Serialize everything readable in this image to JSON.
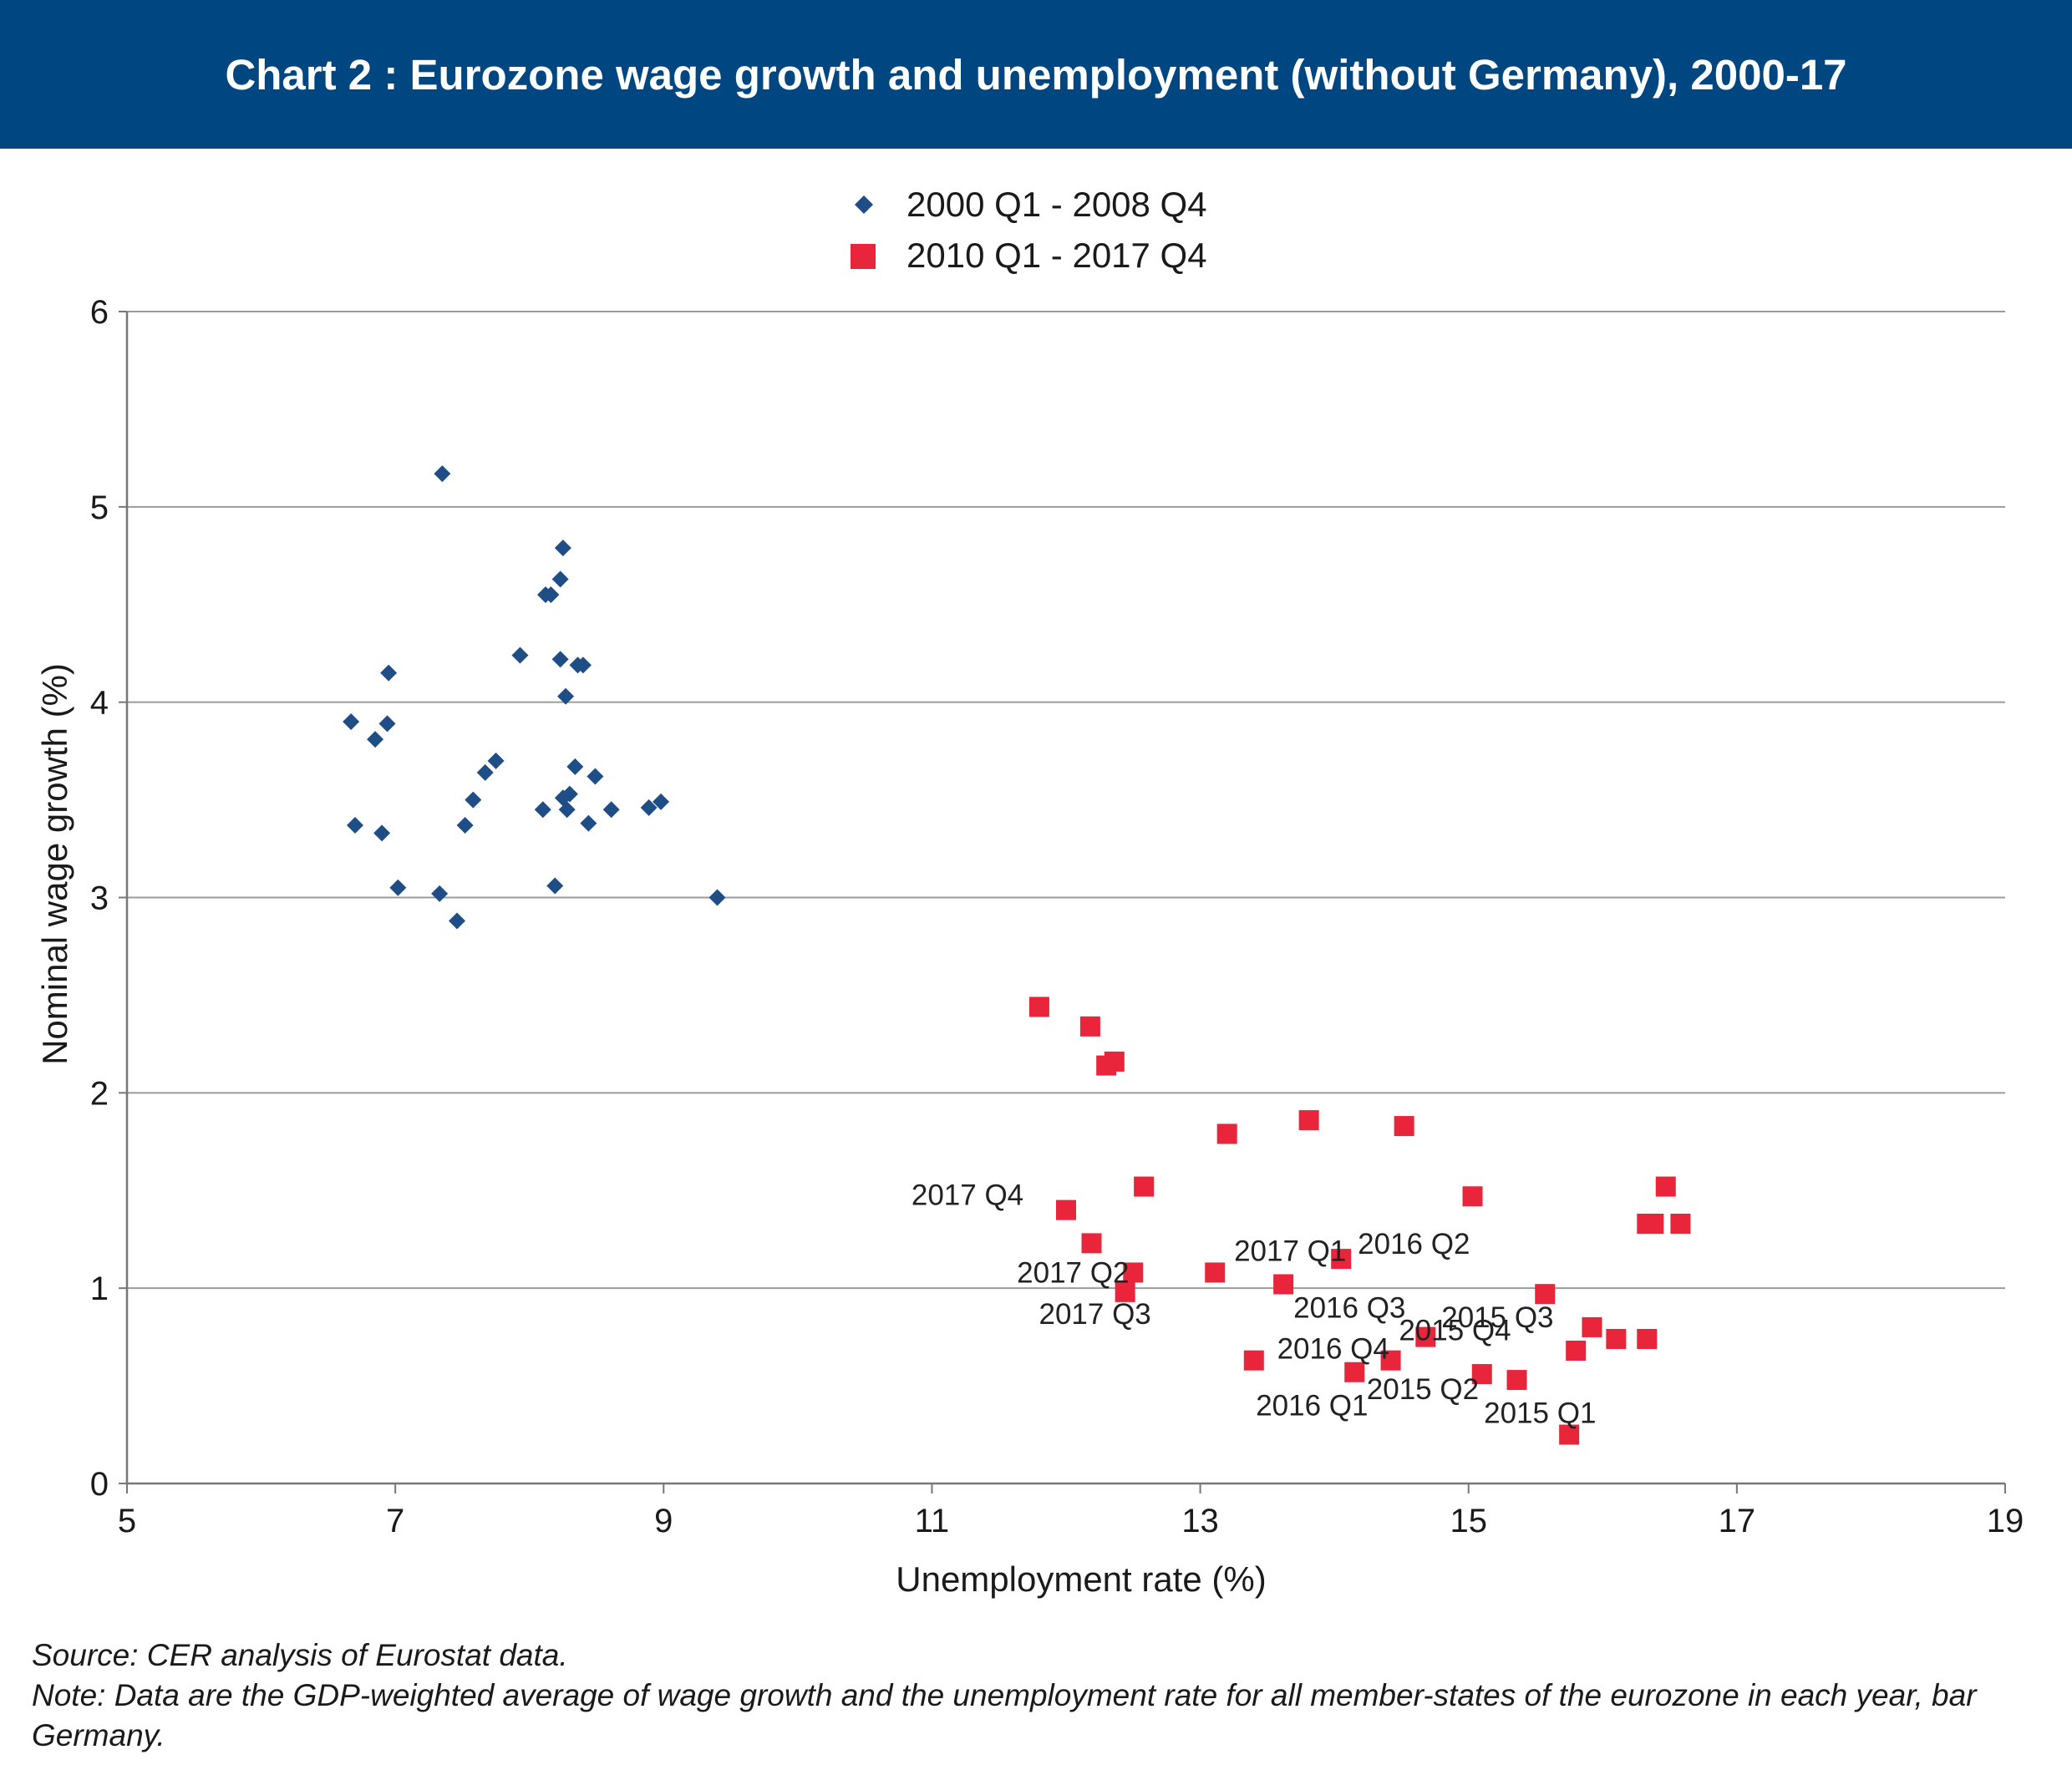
{
  "title": "Chart 2 : Eurozone wage growth and unemployment (without Germany), 2000-17",
  "source": "Source: CER analysis of Eurostat data.",
  "note": "Note: Data are the GDP-weighted average of wage growth and the unemployment rate for all member-states of the eurozone in each year, bar Germany.",
  "colors": {
    "banner": "#004680",
    "series1": "#1F4E87",
    "series2": "#E8253A",
    "grid": "#9b9b9b"
  },
  "chart_data": {
    "type": "scatter",
    "xlabel": "Unemployment rate (%)",
    "ylabel": "Nominal wage growth (%)",
    "xlim": [
      5,
      19
    ],
    "ylim": [
      0,
      6
    ],
    "xticks": [
      5,
      7,
      9,
      11,
      13,
      15,
      17,
      19
    ],
    "yticks": [
      0,
      1,
      2,
      3,
      4,
      5,
      6
    ],
    "grid": "horizontal",
    "legend": "top-center",
    "series": [
      {
        "name": "2000 Q1 - 2008 Q4",
        "marker": "diamond",
        "points": [
          {
            "x": 7.35,
            "y": 5.17
          },
          {
            "x": 8.25,
            "y": 4.79
          },
          {
            "x": 8.23,
            "y": 4.63
          },
          {
            "x": 8.12,
            "y": 4.55
          },
          {
            "x": 8.16,
            "y": 4.55
          },
          {
            "x": 7.93,
            "y": 4.24
          },
          {
            "x": 8.23,
            "y": 4.22
          },
          {
            "x": 8.36,
            "y": 4.19
          },
          {
            "x": 8.4,
            "y": 4.19
          },
          {
            "x": 6.95,
            "y": 4.15
          },
          {
            "x": 8.27,
            "y": 4.03
          },
          {
            "x": 6.67,
            "y": 3.9
          },
          {
            "x": 6.94,
            "y": 3.89
          },
          {
            "x": 6.85,
            "y": 3.81
          },
          {
            "x": 7.75,
            "y": 3.7
          },
          {
            "x": 8.34,
            "y": 3.67
          },
          {
            "x": 7.67,
            "y": 3.64
          },
          {
            "x": 8.49,
            "y": 3.62
          },
          {
            "x": 8.3,
            "y": 3.53
          },
          {
            "x": 8.25,
            "y": 3.51
          },
          {
            "x": 7.58,
            "y": 3.5
          },
          {
            "x": 8.98,
            "y": 3.49
          },
          {
            "x": 8.89,
            "y": 3.46
          },
          {
            "x": 8.1,
            "y": 3.45
          },
          {
            "x": 8.28,
            "y": 3.45
          },
          {
            "x": 8.61,
            "y": 3.45
          },
          {
            "x": 8.44,
            "y": 3.38
          },
          {
            "x": 6.7,
            "y": 3.37
          },
          {
            "x": 7.52,
            "y": 3.37
          },
          {
            "x": 6.9,
            "y": 3.33
          },
          {
            "x": 8.19,
            "y": 3.06
          },
          {
            "x": 7.02,
            "y": 3.05
          },
          {
            "x": 7.33,
            "y": 3.02
          },
          {
            "x": 9.4,
            "y": 3.0
          },
          {
            "x": 7.46,
            "y": 2.88
          }
        ]
      },
      {
        "name": "2010 Q1 - 2017 Q4",
        "marker": "square",
        "points": [
          {
            "x": 11.8,
            "y": 2.44
          },
          {
            "x": 12.18,
            "y": 2.34
          },
          {
            "x": 12.36,
            "y": 2.16
          },
          {
            "x": 12.3,
            "y": 2.14
          },
          {
            "x": 13.81,
            "y": 1.86
          },
          {
            "x": 14.52,
            "y": 1.83
          },
          {
            "x": 13.2,
            "y": 1.79
          },
          {
            "x": 12.58,
            "y": 1.52
          },
          {
            "x": 16.47,
            "y": 1.52
          },
          {
            "x": 15.03,
            "y": 1.47
          },
          {
            "x": 12.0,
            "y": 1.4,
            "label": "2017 Q4"
          },
          {
            "x": 16.33,
            "y": 1.33
          },
          {
            "x": 16.38,
            "y": 1.33
          },
          {
            "x": 16.58,
            "y": 1.33
          },
          {
            "x": 12.19,
            "y": 1.23
          },
          {
            "x": 14.05,
            "y": 1.15,
            "label": "2016 Q2"
          },
          {
            "x": 12.5,
            "y": 1.08,
            "label": "2017 Q2"
          },
          {
            "x": 13.11,
            "y": 1.08,
            "label": "2017 Q1"
          },
          {
            "x": 13.62,
            "y": 1.02,
            "label": "2016 Q3"
          },
          {
            "x": 12.44,
            "y": 0.98,
            "label": "2017 Q3"
          },
          {
            "x": 15.57,
            "y": 0.97,
            "label": "2015 Q3"
          },
          {
            "x": 15.92,
            "y": 0.8
          },
          {
            "x": 14.68,
            "y": 0.75,
            "label": "2015 Q4"
          },
          {
            "x": 16.1,
            "y": 0.74
          },
          {
            "x": 16.33,
            "y": 0.74
          },
          {
            "x": 15.8,
            "y": 0.68
          },
          {
            "x": 13.4,
            "y": 0.63
          },
          {
            "x": 14.42,
            "y": 0.63,
            "label": "2016 Q4"
          },
          {
            "x": 14.15,
            "y": 0.57,
            "label": "2016 Q1"
          },
          {
            "x": 15.1,
            "y": 0.56,
            "label": "2015 Q2"
          },
          {
            "x": 15.36,
            "y": 0.53
          },
          {
            "x": 15.75,
            "y": 0.25,
            "label": "2015 Q1"
          }
        ]
      }
    ]
  }
}
